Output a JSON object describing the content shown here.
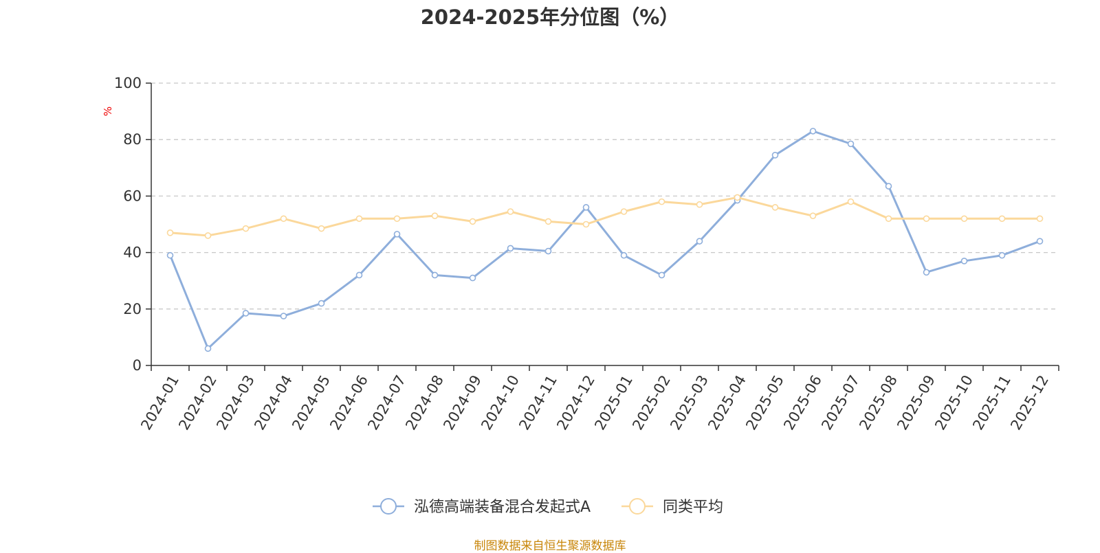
{
  "chart_data": {
    "type": "line",
    "title": "2024-2025年分位图（%）",
    "ylabel": "%",
    "ylim": [
      0,
      100
    ],
    "yticks": [
      0,
      20,
      40,
      60,
      80,
      100
    ],
    "grid": "horizontal dashed",
    "legend_position": "bottom",
    "categories": [
      "2024-01",
      "2024-02",
      "2024-03",
      "2024-04",
      "2024-05",
      "2024-06",
      "2024-07",
      "2024-08",
      "2024-09",
      "2024-10",
      "2024-11",
      "2024-12",
      "2025-01",
      "2025-02",
      "2025-03",
      "2025-04",
      "2025-05",
      "2025-06",
      "2025-07",
      "2025-08",
      "2025-09",
      "2025-10",
      "2025-11",
      "2025-12"
    ],
    "series": [
      {
        "name": "泓德高端装备混合发起式A",
        "color": "#8eaedb",
        "values": [
          39,
          6,
          18.5,
          17.5,
          22,
          32,
          46.5,
          32,
          31,
          41.5,
          40.5,
          56,
          39,
          32,
          44,
          58.5,
          74.5,
          83,
          78.5,
          63.5,
          33,
          37,
          39,
          44
        ]
      },
      {
        "name": "同类平均",
        "color": "#fbd89b",
        "values": [
          47,
          46,
          48.5,
          52,
          48.5,
          52,
          52,
          53,
          51,
          54.5,
          51,
          50,
          54.5,
          58,
          57,
          59.5,
          56,
          53,
          58,
          52,
          52,
          52,
          52,
          52
        ]
      }
    ]
  },
  "colors": {
    "unit_label": "#ee0000",
    "source_note": "#c8860a",
    "grid": "#c8c8c8",
    "axis": "#333333"
  },
  "source_note": "制图数据来自恒生聚源数据库"
}
